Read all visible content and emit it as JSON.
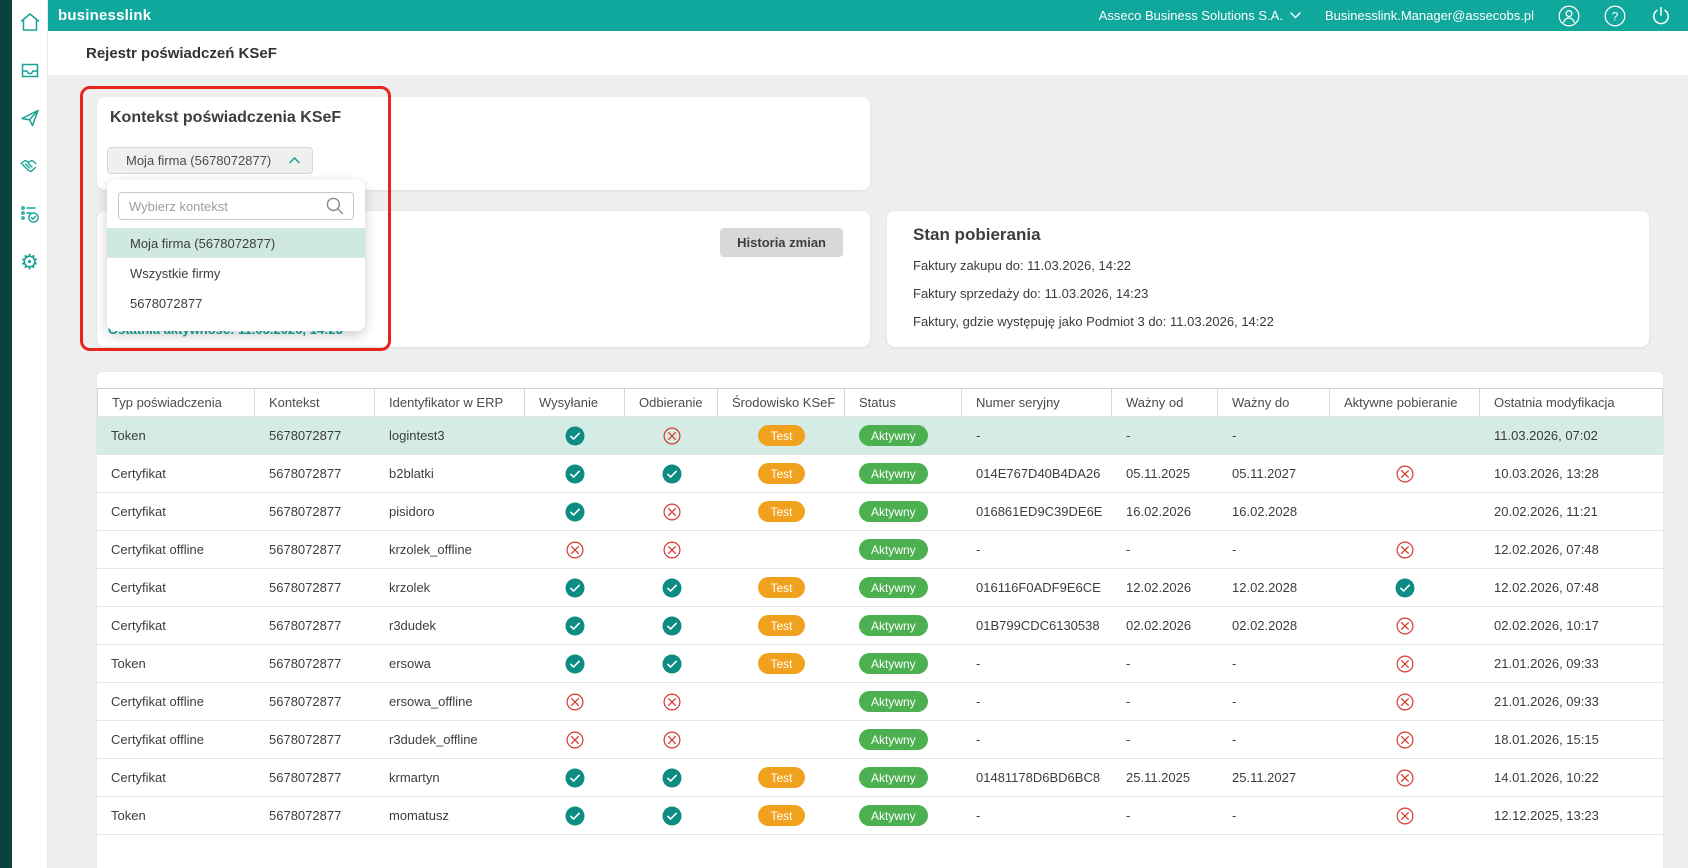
{
  "topbar": {
    "brand": "businesslink",
    "org_selector": "Asseco Business Solutions S.A.",
    "user_email": "Businesslink.Manager@assecobs.pl",
    "icons": [
      "user-icon",
      "help-icon",
      "power-icon"
    ]
  },
  "sidebar": {
    "icons": [
      "home",
      "inbox",
      "send",
      "handshake",
      "tasks",
      "settings"
    ]
  },
  "page": {
    "title": "Rejestr poświadczeń KSeF"
  },
  "context_card": {
    "title": "Kontekst poświadczenia KSeF",
    "selected_value": "Moja firma (5678072877)",
    "search_placeholder": "Wybierz kontekst",
    "options": [
      "Moja firma (5678072877)",
      "Wszystkie firmy",
      "5678072877"
    ],
    "selected_index": 0,
    "last_activity": "Ostatnia aktywność: 11.03.2026, 14:23"
  },
  "history_card": {
    "button_label": "Historia zmian"
  },
  "download_state": {
    "title": "Stan pobierania",
    "lines": [
      "Faktury zakupu do: 11.03.2026, 14:22",
      "Faktury sprzedaży do: 11.03.2026, 14:23",
      "Faktury, gdzie występuję jako Podmiot 3 do: 11.03.2026, 14:22"
    ]
  },
  "table": {
    "columns": [
      "Typ poświadczenia",
      "Kontekst",
      "Identyfikator w ERP",
      "Wysyłanie",
      "Odbieranie",
      "Środowisko KSeF",
      "Status",
      "Numer seryjny",
      "Ważny od",
      "Ważny do",
      "Aktywne pobieranie",
      "Ostatnia modyfikacja"
    ],
    "rows": [
      {
        "highlight": true,
        "cells": [
          "Token",
          "5678072877",
          "logintest3",
          "check",
          "cross",
          "Test",
          "Aktywny",
          "-",
          "-",
          "-",
          "",
          "11.03.2026, 07:02"
        ]
      },
      {
        "highlight": false,
        "cells": [
          "Certyfikat",
          "5678072877",
          "b2blatki",
          "check",
          "check",
          "Test",
          "Aktywny",
          "014E767D40B4DA26",
          "05.11.2025",
          "05.11.2027",
          "cross",
          "10.03.2026, 13:28"
        ]
      },
      {
        "highlight": false,
        "cells": [
          "Certyfikat",
          "5678072877",
          "pisidoro",
          "check",
          "cross",
          "Test",
          "Aktywny",
          "016861ED9C39DE6E",
          "16.02.2026",
          "16.02.2028",
          "",
          "20.02.2026, 11:21"
        ]
      },
      {
        "highlight": false,
        "cells": [
          "Certyfikat offline",
          "5678072877",
          "krzolek_offline",
          "cross",
          "cross",
          "",
          "Aktywny",
          "-",
          "-",
          "-",
          "cross",
          "12.02.2026, 07:48"
        ]
      },
      {
        "highlight": false,
        "cells": [
          "Certyfikat",
          "5678072877",
          "krzolek",
          "check",
          "check",
          "Test",
          "Aktywny",
          "016116F0ADF9E6CE",
          "12.02.2026",
          "12.02.2028",
          "check",
          "12.02.2026, 07:48"
        ]
      },
      {
        "highlight": false,
        "cells": [
          "Certyfikat",
          "5678072877",
          "r3dudek",
          "check",
          "check",
          "Test",
          "Aktywny",
          "01B799CDC6130538",
          "02.02.2026",
          "02.02.2028",
          "cross",
          "02.02.2026, 10:17"
        ]
      },
      {
        "highlight": false,
        "cells": [
          "Token",
          "5678072877",
          "ersowa",
          "check",
          "check",
          "Test",
          "Aktywny",
          "-",
          "-",
          "-",
          "cross",
          "21.01.2026, 09:33"
        ]
      },
      {
        "highlight": false,
        "cells": [
          "Certyfikat offline",
          "5678072877",
          "ersowa_offline",
          "cross",
          "cross",
          "",
          "Aktywny",
          "-",
          "-",
          "-",
          "cross",
          "21.01.2026, 09:33"
        ]
      },
      {
        "highlight": false,
        "cells": [
          "Certyfikat offline",
          "5678072877",
          "r3dudek_offline",
          "cross",
          "cross",
          "",
          "Aktywny",
          "-",
          "-",
          "-",
          "cross",
          "18.01.2026, 15:15"
        ]
      },
      {
        "highlight": false,
        "cells": [
          "Certyfikat",
          "5678072877",
          "krmartyn",
          "check",
          "check",
          "Test",
          "Aktywny",
          "01481178D6BD6BC8",
          "25.11.2025",
          "25.11.2027",
          "cross",
          "14.01.2026, 10:22"
        ]
      },
      {
        "highlight": false,
        "cells": [
          "Token",
          "5678072877",
          "momatusz",
          "check",
          "check",
          "Test",
          "Aktywny",
          "-",
          "-",
          "-",
          "cross",
          "12.12.2025, 13:23"
        ]
      }
    ]
  },
  "colors": {
    "topbar_teal": "#10a79c",
    "rail_dark": "#0c423c",
    "sidebar_icon_teal": "#17a295",
    "badge_orange": "#f0a11d",
    "badge_green": "#4caf50",
    "check_teal": "#0d8c83",
    "cross_red": "#d43a2f",
    "row_highlight": "#d5ebe5",
    "annotation_red": "#e8241c"
  }
}
